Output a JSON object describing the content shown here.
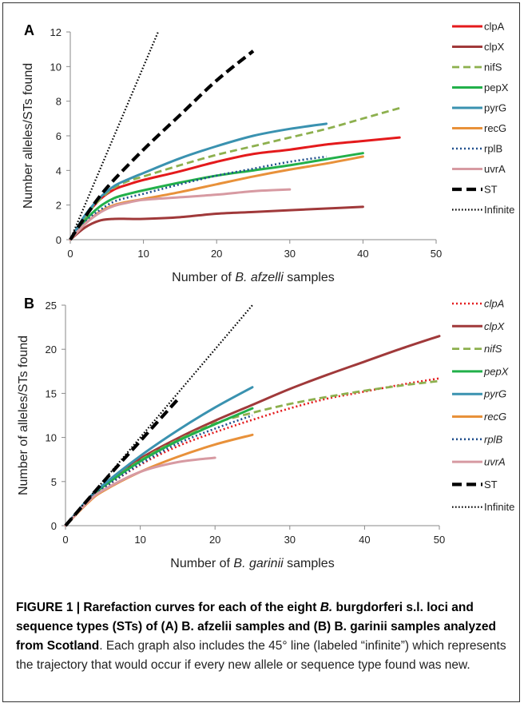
{
  "chart_data": [
    {
      "type": "line",
      "panel_label": "A",
      "xlabel_parts": [
        {
          "text": "Number of ",
          "italic": false
        },
        {
          "text": "B. afzelli",
          "italic": true
        },
        {
          "text": " samples",
          "italic": false
        }
      ],
      "ylabel": "Number alleles/STs found",
      "xlim": [
        0,
        50
      ],
      "ylim": [
        0,
        12
      ],
      "xticks": [
        0,
        10,
        20,
        30,
        40,
        50
      ],
      "yticks": [
        0,
        2,
        4,
        6,
        8,
        10,
        12
      ],
      "legend_italic": false,
      "legend_position": "right",
      "series": [
        {
          "name": "clpA",
          "color": "#e41a1c",
          "style": "solid",
          "x": [
            0,
            2,
            4,
            6,
            8,
            10,
            15,
            20,
            25,
            30,
            35,
            40,
            45
          ],
          "y": [
            0,
            1.3,
            2.3,
            2.9,
            3.2,
            3.45,
            3.95,
            4.5,
            4.95,
            5.2,
            5.5,
            5.7,
            5.9
          ]
        },
        {
          "name": "clpX",
          "color": "#a0393a",
          "style": "solid",
          "x": [
            0,
            2,
            4,
            6,
            8,
            10,
            15,
            20,
            25,
            30,
            35,
            40
          ],
          "y": [
            0,
            0.7,
            1.1,
            1.2,
            1.2,
            1.2,
            1.3,
            1.5,
            1.6,
            1.7,
            1.8,
            1.9
          ]
        },
        {
          "name": "nifS",
          "color": "#8db04e",
          "style": "dashed",
          "x": [
            0,
            2,
            4,
            6,
            8,
            10,
            15,
            20,
            25,
            30,
            35,
            40,
            45
          ],
          "y": [
            0,
            1.3,
            2.3,
            3.0,
            3.4,
            3.65,
            4.3,
            4.9,
            5.4,
            5.9,
            6.4,
            7.0,
            7.6
          ]
        },
        {
          "name": "pepX",
          "color": "#22b04a",
          "style": "solid",
          "x": [
            0,
            2,
            4,
            6,
            8,
            10,
            15,
            20,
            25,
            30,
            35,
            40
          ],
          "y": [
            0,
            1.1,
            1.9,
            2.4,
            2.65,
            2.85,
            3.3,
            3.7,
            4.0,
            4.3,
            4.65,
            5.0
          ]
        },
        {
          "name": "pyrG",
          "color": "#3a92b0",
          "style": "solid",
          "x": [
            0,
            2,
            4,
            6,
            8,
            10,
            15,
            20,
            25,
            30,
            35
          ],
          "y": [
            0,
            1.4,
            2.4,
            3.1,
            3.5,
            3.85,
            4.7,
            5.4,
            6.0,
            6.4,
            6.7
          ]
        },
        {
          "name": "recG",
          "color": "#e8913a",
          "style": "solid",
          "x": [
            0,
            2,
            4,
            6,
            8,
            10,
            15,
            20,
            25,
            30,
            35,
            40
          ],
          "y": [
            0,
            0.9,
            1.6,
            2.0,
            2.2,
            2.35,
            2.75,
            3.2,
            3.65,
            4.05,
            4.4,
            4.8
          ]
        },
        {
          "name": "rplB",
          "color": "#1f4e8c",
          "style": "dotted",
          "x": [
            0,
            2,
            4,
            6,
            8,
            10,
            15,
            20,
            25,
            30,
            35
          ],
          "y": [
            0,
            1.0,
            1.7,
            2.2,
            2.45,
            2.65,
            3.2,
            3.7,
            4.1,
            4.5,
            4.8
          ]
        },
        {
          "name": "uvrA",
          "color": "#d79aa2",
          "style": "solid",
          "x": [
            0,
            2,
            4,
            6,
            8,
            10,
            15,
            20,
            25,
            30
          ],
          "y": [
            0,
            0.9,
            1.55,
            1.95,
            2.15,
            2.3,
            2.45,
            2.6,
            2.8,
            2.9
          ]
        },
        {
          "name": "ST",
          "color": "#000000",
          "style": "bigdash",
          "x": [
            0,
            2,
            5,
            10,
            15,
            20,
            25
          ],
          "y": [
            0,
            1.3,
            3.0,
            5.2,
            7.2,
            9.2,
            10.9
          ]
        },
        {
          "name": "Infinite",
          "color": "#000000",
          "style": "fine-dotted",
          "x": [
            0,
            12
          ],
          "y": [
            0,
            12
          ]
        }
      ]
    },
    {
      "type": "line",
      "panel_label": "B",
      "xlabel_parts": [
        {
          "text": "Number of ",
          "italic": false
        },
        {
          "text": "B. garinii",
          "italic": true
        },
        {
          "text": " samples",
          "italic": false
        }
      ],
      "ylabel": "Number of alleles/STs found",
      "xlim": [
        0,
        50
      ],
      "ylim": [
        0,
        25
      ],
      "xticks": [
        0,
        10,
        20,
        30,
        40,
        50
      ],
      "yticks": [
        0,
        5,
        10,
        15,
        20,
        25
      ],
      "legend_italic": true,
      "legend_position": "right",
      "series": [
        {
          "name": "clpA",
          "color": "#e41a1c",
          "style": "dotted",
          "x": [
            0,
            3,
            5,
            10,
            15,
            20,
            25,
            30,
            35,
            40,
            45,
            50
          ],
          "y": [
            0,
            2.8,
            4.2,
            6.9,
            9.0,
            10.6,
            12.0,
            13.3,
            14.4,
            15.2,
            16.0,
            16.7
          ]
        },
        {
          "name": "clpX",
          "color": "#a0393a",
          "style": "solid",
          "x": [
            0,
            3,
            5,
            10,
            15,
            20,
            25,
            30,
            35,
            40,
            45,
            50
          ],
          "y": [
            0,
            2.9,
            4.5,
            7.6,
            9.9,
            11.9,
            13.7,
            15.5,
            17.1,
            18.6,
            20.1,
            21.5
          ]
        },
        {
          "name": "nifS",
          "color": "#8db04e",
          "style": "dashed",
          "x": [
            0,
            3,
            5,
            10,
            15,
            20,
            25,
            30,
            35,
            40,
            45,
            50
          ],
          "y": [
            0,
            2.9,
            4.4,
            7.4,
            9.7,
            11.6,
            12.8,
            13.8,
            14.6,
            15.3,
            15.9,
            16.4
          ]
        },
        {
          "name": "pepX",
          "color": "#22b04a",
          "style": "solid",
          "x": [
            0,
            3,
            5,
            10,
            15,
            20,
            25
          ],
          "y": [
            0,
            2.9,
            4.4,
            7.3,
            9.6,
            11.5,
            13.3
          ]
        },
        {
          "name": "pyrG",
          "color": "#3a92b0",
          "style": "solid",
          "x": [
            0,
            3,
            5,
            10,
            15,
            20,
            25
          ],
          "y": [
            0,
            3.0,
            4.6,
            7.9,
            10.8,
            13.4,
            15.7
          ]
        },
        {
          "name": "recG",
          "color": "#e8913a",
          "style": "solid",
          "x": [
            0,
            3,
            5,
            10,
            15,
            20,
            25
          ],
          "y": [
            0,
            2.6,
            3.9,
            6.1,
            7.8,
            9.2,
            10.3
          ]
        },
        {
          "name": "rplB",
          "color": "#1f4e8c",
          "style": "dotted",
          "x": [
            0,
            3,
            5,
            10,
            15,
            20,
            25
          ],
          "y": [
            0,
            2.8,
            4.2,
            7.0,
            9.3,
            11.0,
            12.5
          ]
        },
        {
          "name": "uvrA",
          "color": "#d79aa2",
          "style": "solid",
          "x": [
            0,
            3,
            5,
            10,
            15,
            20
          ],
          "y": [
            0,
            2.7,
            4.0,
            6.1,
            7.2,
            7.7
          ]
        },
        {
          "name": "ST",
          "color": "#000000",
          "style": "bigdash",
          "x": [
            0,
            5,
            10,
            15
          ],
          "y": [
            0,
            4.9,
            9.6,
            14.3
          ]
        },
        {
          "name": "Infinite",
          "color": "#000000",
          "style": "fine-dotted",
          "x": [
            0,
            25
          ],
          "y": [
            0,
            25
          ]
        }
      ]
    }
  ],
  "caption": {
    "bold_parts": [
      {
        "text": "FIGURE 1 | Rarefaction curves for each of the eight ",
        "italic": false
      },
      {
        "text": "B.",
        "italic": true
      },
      {
        "text": " burgdorferi s.l. loci and sequence types (STs) of (A) B. afzelii samples and (B) B. garinii samples analyzed from Scotland",
        "italic": false
      }
    ],
    "regular": ". Each graph also includes the 45° line (labeled “infinite”) which represents the trajectory that would occur if every new allele or sequence type found was new."
  }
}
